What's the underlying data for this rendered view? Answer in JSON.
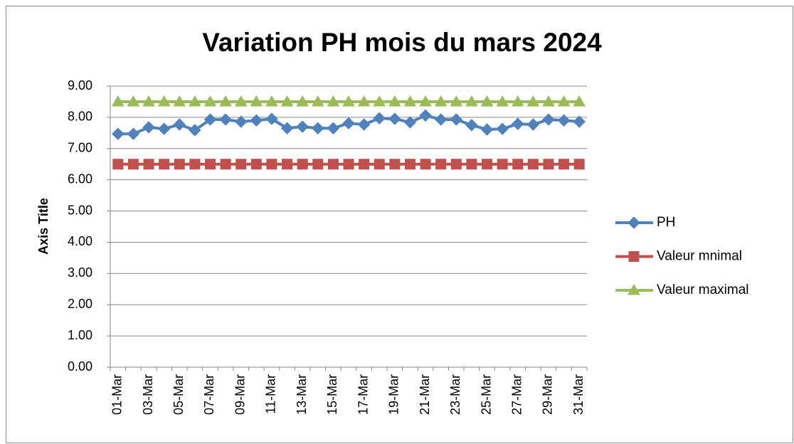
{
  "chart_data": {
    "type": "line",
    "title": "Variation PH mois du mars 2024",
    "y_label": "Axis Title",
    "categories": [
      "01-Mar",
      null,
      "03-Mar",
      null,
      "05-Mar",
      null,
      "07-Mar",
      null,
      "09-Mar",
      null,
      "11-Mar",
      null,
      "13-Mar",
      null,
      "15-Mar",
      null,
      "17-Mar",
      null,
      "19-Mar",
      null,
      "21-Mar",
      null,
      "23-Mar",
      null,
      "25-Mar",
      null,
      "27-Mar",
      null,
      "29-Mar",
      null,
      "31-Mar"
    ],
    "series": [
      {
        "name": "PH",
        "color": "#4f81bd",
        "marker": "diamond",
        "values": [
          7.47,
          7.47,
          7.68,
          7.63,
          7.77,
          7.59,
          7.93,
          7.93,
          7.86,
          7.9,
          7.95,
          7.65,
          7.7,
          7.65,
          7.65,
          7.81,
          7.77,
          7.97,
          7.95,
          7.84,
          8.06,
          7.93,
          7.93,
          7.75,
          7.61,
          7.63,
          7.79,
          7.77,
          7.93,
          7.9,
          7.86
        ]
      },
      {
        "name": "Valeur mnimal",
        "color": "#c0504d",
        "marker": "square",
        "values": [
          6.5,
          6.5,
          6.5,
          6.5,
          6.5,
          6.5,
          6.5,
          6.5,
          6.5,
          6.5,
          6.5,
          6.5,
          6.5,
          6.5,
          6.5,
          6.5,
          6.5,
          6.5,
          6.5,
          6.5,
          6.5,
          6.5,
          6.5,
          6.5,
          6.5,
          6.5,
          6.5,
          6.5,
          6.5,
          6.5,
          6.5
        ]
      },
      {
        "name": "Valeur maximal",
        "color": "#9bbb59",
        "marker": "triangle",
        "values": [
          8.5,
          8.5,
          8.5,
          8.5,
          8.5,
          8.5,
          8.5,
          8.5,
          8.5,
          8.5,
          8.5,
          8.5,
          8.5,
          8.5,
          8.5,
          8.5,
          8.5,
          8.5,
          8.5,
          8.5,
          8.5,
          8.5,
          8.5,
          8.5,
          8.5,
          8.5,
          8.5,
          8.5,
          8.5,
          8.5,
          8.5
        ]
      }
    ],
    "ylim": [
      0,
      9
    ],
    "yticks": [
      {
        "value": 0,
        "label": "0.00"
      },
      {
        "value": 1,
        "label": "1.00"
      },
      {
        "value": 2,
        "label": "2.00"
      },
      {
        "value": 3,
        "label": "3.00"
      },
      {
        "value": 4,
        "label": "4.00"
      },
      {
        "value": 5,
        "label": "5.00"
      },
      {
        "value": 6,
        "label": "6.00"
      },
      {
        "value": 7,
        "label": "7.00"
      },
      {
        "value": 8,
        "label": "8.00"
      },
      {
        "value": 9,
        "label": "9.00"
      }
    ],
    "grid": true,
    "legend": "right"
  }
}
